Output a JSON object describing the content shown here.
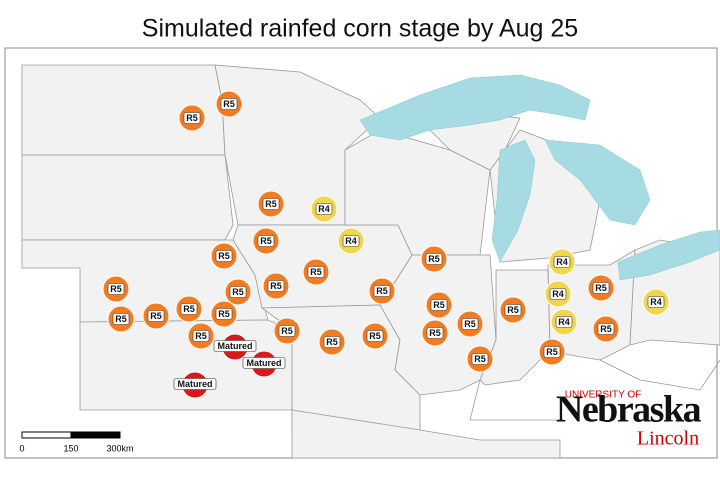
{
  "title": "Simulated rainfed corn stage by Aug 25",
  "markers": [
    {
      "label": "R5",
      "color": "#f47b20"
    },
    {
      "label": "R5",
      "color": "#f47b20"
    },
    {
      "label": "R5",
      "color": "#f47b20"
    },
    {
      "label": "R4",
      "color": "#f2d54a"
    },
    {
      "label": "R5",
      "color": "#f47b20"
    },
    {
      "label": "R4",
      "color": "#f2d54a"
    },
    {
      "label": "R5",
      "color": "#f47b20"
    },
    {
      "label": "R5",
      "color": "#f47b20"
    },
    {
      "label": "R5",
      "color": "#f47b20"
    },
    {
      "label": "R5",
      "color": "#f47b20"
    },
    {
      "label": "R5",
      "color": "#f47b20"
    },
    {
      "label": "R5",
      "color": "#f47b20"
    },
    {
      "label": "R5",
      "color": "#f47b20"
    },
    {
      "label": "R5",
      "color": "#f47b20"
    },
    {
      "label": "R5",
      "color": "#f47b20"
    },
    {
      "label": "R5",
      "color": "#f47b20"
    },
    {
      "label": "R5",
      "color": "#f47b20"
    },
    {
      "label": "R5",
      "color": "#f47b20"
    },
    {
      "label": "R5",
      "color": "#f47b20"
    },
    {
      "label": "R5",
      "color": "#f47b20"
    },
    {
      "label": "R5",
      "color": "#f47b20"
    },
    {
      "label": "R5",
      "color": "#f47b20"
    },
    {
      "label": "R5",
      "color": "#f47b20"
    },
    {
      "label": "R5",
      "color": "#f47b20"
    },
    {
      "label": "R5",
      "color": "#f47b20"
    },
    {
      "label": "R5",
      "color": "#f47b20"
    },
    {
      "label": "R5",
      "color": "#f47b20"
    },
    {
      "label": "R4",
      "color": "#f2d54a"
    },
    {
      "label": "R4",
      "color": "#f2d54a"
    },
    {
      "label": "R4",
      "color": "#f2d54a"
    },
    {
      "label": "R5",
      "color": "#f47b20"
    },
    {
      "label": "R5",
      "color": "#f47b20"
    },
    {
      "label": "R4",
      "color": "#f2d54a"
    },
    {
      "label": "Matured",
      "color": "#d7191c"
    },
    {
      "label": "Matured",
      "color": "#d7191c"
    },
    {
      "label": "Matured",
      "color": "#d7191c"
    }
  ],
  "scale_bar": {
    "labels": [
      "0",
      "150",
      "300km"
    ]
  },
  "logo": {
    "top": "UNIVERSITY OF",
    "name": "Nebraska",
    "campus": "Lincoln"
  }
}
